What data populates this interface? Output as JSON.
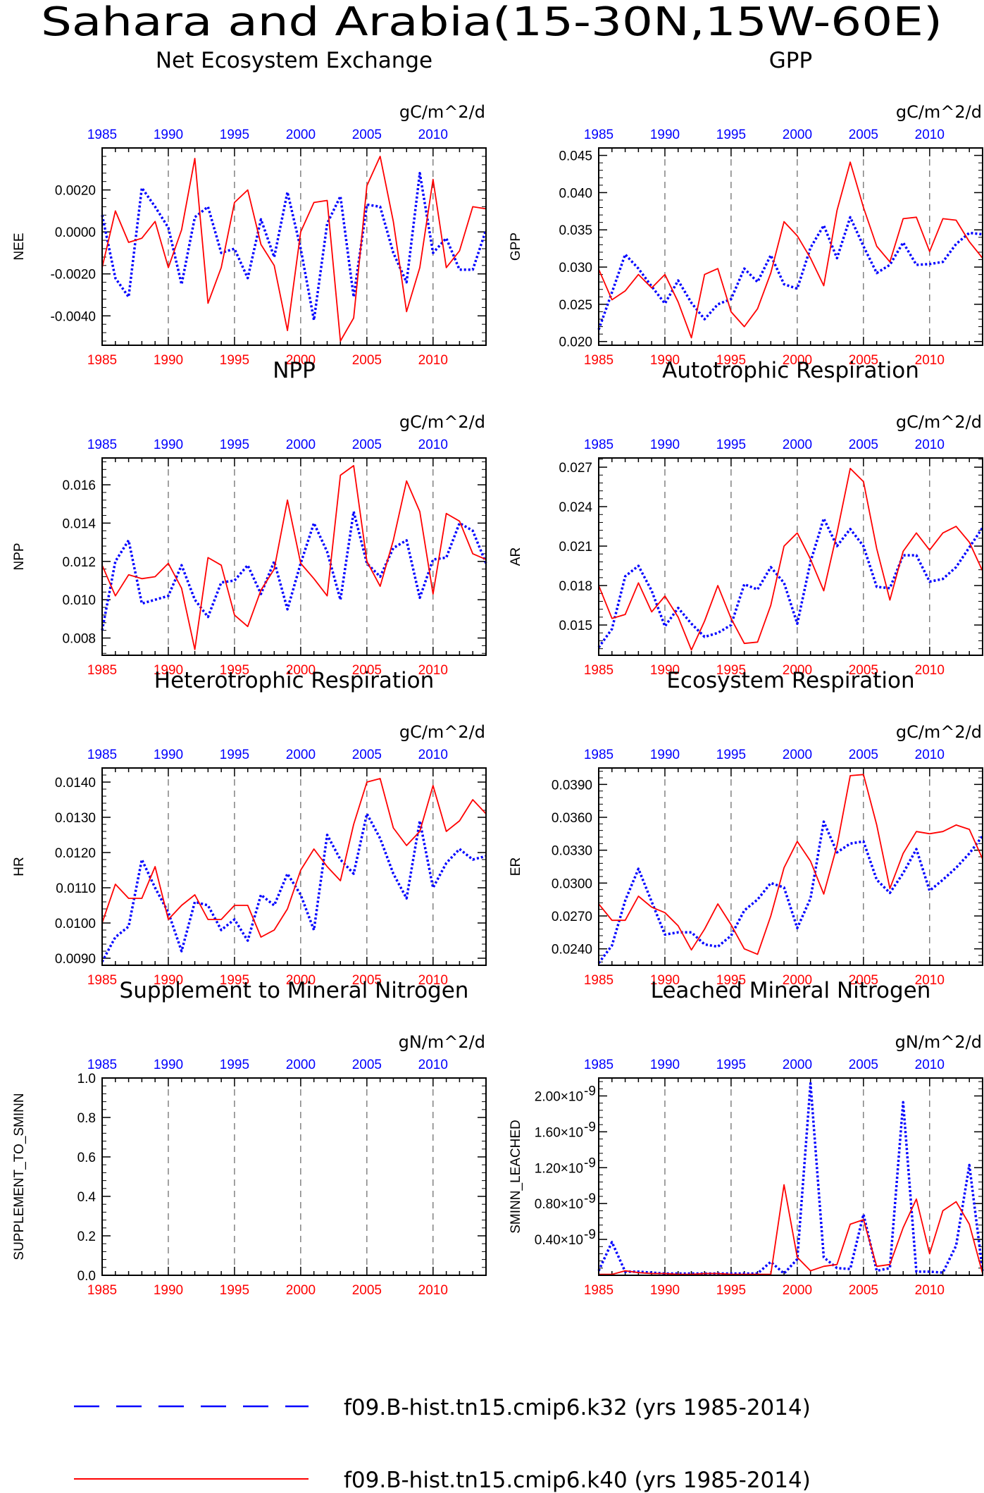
{
  "title": "Sahara and Arabia(15-30N,15W-60E)",
  "legend": [
    {
      "label": "f09.B-hist.tn15.cmip6.k32 (yrs 1985-2014)",
      "color": "#0000ff",
      "style": "dashed"
    },
    {
      "label": "f09.B-hist.tn15.cmip6.k40 (yrs 1985-2014)",
      "color": "#ff0000",
      "style": "solid"
    }
  ],
  "colors": {
    "k32": "#0000ff",
    "k40": "#ff0000",
    "bottom_ticks": "#ff0000",
    "top_ticks": "#0000ff"
  },
  "chart_data": [
    {
      "type": "line",
      "title": "Net Ecosystem Exchange",
      "ylabel": "NEE",
      "units": "gC/m^2/d",
      "xlim": [
        1985,
        2014
      ],
      "ylim": [
        -0.0054,
        0.004
      ],
      "xticks": [
        1985,
        1990,
        1995,
        2000,
        2005,
        2010
      ],
      "yticks": [
        -0.004,
        -0.002,
        0.0,
        0.002
      ],
      "yticklabels": [
        "-0.0040",
        "-0.0020",
        "0.0000",
        "0.0020"
      ],
      "x": [
        1985,
        1986,
        1987,
        1988,
        1989,
        1990,
        1991,
        1992,
        1993,
        1994,
        1995,
        1996,
        1997,
        1998,
        1999,
        2000,
        2001,
        2002,
        2003,
        2004,
        2005,
        2006,
        2007,
        2008,
        2009,
        2010,
        2011,
        2012,
        2013,
        2014
      ],
      "series": [
        {
          "name": "f09.B-hist.tn15.cmip6.k32",
          "color": "#0000ff",
          "dash": true,
          "values": [
            0.0008,
            -0.0022,
            -0.0031,
            0.0021,
            0.0012,
            0.0002,
            -0.0025,
            0.0007,
            0.0012,
            -0.001,
            -0.0008,
            -0.0022,
            0.0006,
            -0.0012,
            0.0019,
            -0.0008,
            -0.0042,
            0.0004,
            0.0017,
            -0.0031,
            0.0013,
            0.0012,
            -0.001,
            -0.0024,
            0.0028,
            -0.001,
            -0.0003,
            -0.0018,
            -0.0018,
            0.0001
          ]
        },
        {
          "name": "f09.B-hist.tn15.cmip6.k40",
          "color": "#ff0000",
          "dash": false,
          "values": [
            -0.0017,
            0.001,
            -0.0005,
            -0.0003,
            0.0005,
            -0.0017,
            0.0001,
            0.0035,
            -0.0034,
            -0.0017,
            0.0014,
            0.002,
            -0.0006,
            -0.0016,
            -0.0047,
            0.0,
            0.0014,
            0.0015,
            -0.0052,
            -0.0041,
            0.0022,
            0.0036,
            0.0005,
            -0.0038,
            -0.0017,
            0.0025,
            -0.0017,
            -0.0009,
            0.0012,
            0.0011
          ]
        }
      ]
    },
    {
      "type": "line",
      "title": "GPP",
      "ylabel": "GPP",
      "units": "gC/m^2/d",
      "xlim": [
        1985,
        2014
      ],
      "ylim": [
        0.0195,
        0.046
      ],
      "xticks": [
        1985,
        1990,
        1995,
        2000,
        2005,
        2010
      ],
      "yticks": [
        0.02,
        0.025,
        0.03,
        0.035,
        0.04,
        0.045
      ],
      "yticklabels": [
        "0.020",
        "0.025",
        "0.030",
        "0.035",
        "0.040",
        "0.045"
      ],
      "x": [
        1985,
        1986,
        1987,
        1988,
        1989,
        1990,
        1991,
        1992,
        1993,
        1994,
        1995,
        1996,
        1997,
        1998,
        1999,
        2000,
        2001,
        2002,
        2003,
        2004,
        2005,
        2006,
        2007,
        2008,
        2009,
        2010,
        2011,
        2012,
        2013,
        2014
      ],
      "series": [
        {
          "name": "f09.B-hist.tn15.cmip6.k32",
          "color": "#0000ff",
          "dash": true,
          "values": [
            0.0216,
            0.0266,
            0.0317,
            0.0298,
            0.0274,
            0.0251,
            0.0282,
            0.0252,
            0.023,
            0.025,
            0.0257,
            0.0298,
            0.028,
            0.0316,
            0.0277,
            0.0271,
            0.0326,
            0.0356,
            0.0312,
            0.0367,
            0.0328,
            0.0292,
            0.0303,
            0.0333,
            0.0303,
            0.0304,
            0.0307,
            0.0331,
            0.0346,
            0.0344
          ]
        },
        {
          "name": "f09.B-hist.tn15.cmip6.k40",
          "color": "#ff0000",
          "dash": false,
          "values": [
            0.0297,
            0.0256,
            0.0268,
            0.029,
            0.0272,
            0.029,
            0.0253,
            0.0205,
            0.029,
            0.0298,
            0.024,
            0.022,
            0.0244,
            0.0292,
            0.0361,
            0.0342,
            0.0312,
            0.0275,
            0.0376,
            0.0441,
            0.038,
            0.0328,
            0.0307,
            0.0365,
            0.0367,
            0.0321,
            0.0365,
            0.0363,
            0.0334,
            0.0312
          ]
        }
      ]
    },
    {
      "type": "line",
      "title": "NPP",
      "ylabel": "NPP",
      "units": "gC/m^2/d",
      "xlim": [
        1985,
        2014
      ],
      "ylim": [
        0.0071,
        0.0174
      ],
      "xticks": [
        1985,
        1990,
        1995,
        2000,
        2005,
        2010
      ],
      "yticks": [
        0.008,
        0.01,
        0.012,
        0.014,
        0.016
      ],
      "yticklabels": [
        "0.008",
        "0.010",
        "0.012",
        "0.014",
        "0.016"
      ],
      "x": [
        1985,
        1986,
        1987,
        1988,
        1989,
        1990,
        1991,
        1992,
        1993,
        1994,
        1995,
        1996,
        1997,
        1998,
        1999,
        2000,
        2001,
        2002,
        2003,
        2004,
        2005,
        2006,
        2007,
        2008,
        2009,
        2010,
        2011,
        2012,
        2013,
        2014
      ],
      "series": [
        {
          "name": "f09.B-hist.tn15.cmip6.k32",
          "color": "#0000ff",
          "dash": true,
          "values": [
            0.0084,
            0.012,
            0.0131,
            0.0098,
            0.01,
            0.0102,
            0.0118,
            0.01,
            0.0091,
            0.0109,
            0.011,
            0.0118,
            0.0103,
            0.012,
            0.0095,
            0.0119,
            0.014,
            0.0125,
            0.01,
            0.0146,
            0.0119,
            0.0112,
            0.0127,
            0.0131,
            0.0101,
            0.0121,
            0.0122,
            0.014,
            0.0136,
            0.0119
          ]
        },
        {
          "name": "f09.B-hist.tn15.cmip6.k40",
          "color": "#ff0000",
          "dash": false,
          "values": [
            0.0118,
            0.0102,
            0.0113,
            0.0111,
            0.0112,
            0.0119,
            0.0106,
            0.0074,
            0.0122,
            0.0118,
            0.0092,
            0.0086,
            0.0105,
            0.0116,
            0.0152,
            0.0119,
            0.0111,
            0.0102,
            0.0165,
            0.017,
            0.012,
            0.0107,
            0.0131,
            0.0162,
            0.0146,
            0.0103,
            0.0145,
            0.0141,
            0.0124,
            0.0121
          ]
        }
      ]
    },
    {
      "type": "line",
      "title": "Autotrophic Respiration",
      "ylabel": "AR",
      "units": "gC/m^2/d",
      "xlim": [
        1985,
        2014
      ],
      "ylim": [
        0.0127,
        0.0277
      ],
      "xticks": [
        1985,
        1990,
        1995,
        2000,
        2005,
        2010
      ],
      "yticks": [
        0.015,
        0.018,
        0.021,
        0.024,
        0.027
      ],
      "yticklabels": [
        "0.015",
        "0.018",
        "0.021",
        "0.024",
        "0.027"
      ],
      "x": [
        1985,
        1986,
        1987,
        1988,
        1989,
        1990,
        1991,
        1992,
        1993,
        1994,
        1995,
        1996,
        1997,
        1998,
        1999,
        2000,
        2001,
        2002,
        2003,
        2004,
        2005,
        2006,
        2007,
        2008,
        2009,
        2010,
        2011,
        2012,
        2013,
        2014
      ],
      "series": [
        {
          "name": "f09.B-hist.tn15.cmip6.k32",
          "color": "#0000ff",
          "dash": true,
          "values": [
            0.0133,
            0.0147,
            0.0187,
            0.0195,
            0.0176,
            0.0149,
            0.0163,
            0.0151,
            0.0141,
            0.0144,
            0.015,
            0.0181,
            0.0177,
            0.0194,
            0.0182,
            0.0151,
            0.0198,
            0.0231,
            0.021,
            0.0223,
            0.021,
            0.0179,
            0.0178,
            0.0203,
            0.0203,
            0.0183,
            0.0185,
            0.0194,
            0.0209,
            0.0224
          ]
        },
        {
          "name": "f09.B-hist.tn15.cmip6.k40",
          "color": "#ff0000",
          "dash": false,
          "values": [
            0.018,
            0.0155,
            0.0158,
            0.0182,
            0.016,
            0.0172,
            0.0156,
            0.0131,
            0.0153,
            0.018,
            0.0155,
            0.0136,
            0.0137,
            0.0165,
            0.021,
            0.022,
            0.02,
            0.0176,
            0.022,
            0.0269,
            0.0259,
            0.0208,
            0.0169,
            0.0206,
            0.022,
            0.0207,
            0.022,
            0.0225,
            0.0213,
            0.0191
          ]
        }
      ]
    },
    {
      "type": "line",
      "title": "Heterotrophic Respiration",
      "ylabel": "HR",
      "units": "gC/m^2/d",
      "xlim": [
        1985,
        2014
      ],
      "ylim": [
        0.0088,
        0.0144
      ],
      "xticks": [
        1985,
        1990,
        1995,
        2000,
        2005,
        2010
      ],
      "yticks": [
        0.009,
        0.01,
        0.011,
        0.012,
        0.013,
        0.014
      ],
      "yticklabels": [
        "0.0090",
        "0.0100",
        "0.0110",
        "0.0120",
        "0.0130",
        "0.0140"
      ],
      "x": [
        1985,
        1986,
        1987,
        1988,
        1989,
        1990,
        1991,
        1992,
        1993,
        1994,
        1995,
        1996,
        1997,
        1998,
        1999,
        2000,
        2001,
        2002,
        2003,
        2004,
        2005,
        2006,
        2007,
        2008,
        2009,
        2010,
        2011,
        2012,
        2013,
        2014
      ],
      "series": [
        {
          "name": "f09.B-hist.tn15.cmip6.k32",
          "color": "#0000ff",
          "dash": true,
          "values": [
            0.0089,
            0.0096,
            0.0099,
            0.0118,
            0.011,
            0.0103,
            0.0092,
            0.0106,
            0.0105,
            0.0098,
            0.0101,
            0.0095,
            0.0108,
            0.0105,
            0.0114,
            0.0108,
            0.0098,
            0.0125,
            0.0118,
            0.0114,
            0.0131,
            0.0124,
            0.0114,
            0.0107,
            0.0129,
            0.011,
            0.0117,
            0.0121,
            0.0118,
            0.0119
          ]
        },
        {
          "name": "f09.B-hist.tn15.cmip6.k40",
          "color": "#ff0000",
          "dash": false,
          "values": [
            0.01,
            0.0111,
            0.0107,
            0.0107,
            0.0116,
            0.0101,
            0.0105,
            0.0108,
            0.0101,
            0.0101,
            0.0105,
            0.0105,
            0.0096,
            0.0098,
            0.0104,
            0.0115,
            0.0121,
            0.0116,
            0.0112,
            0.0128,
            0.014,
            0.0141,
            0.0127,
            0.0122,
            0.0126,
            0.0139,
            0.0126,
            0.0129,
            0.0135,
            0.0131
          ]
        }
      ]
    },
    {
      "type": "line",
      "title": "Ecosystem Respiration",
      "ylabel": "ER",
      "units": "gC/m^2/d",
      "xlim": [
        1985,
        2014
      ],
      "ylim": [
        0.0225,
        0.0405
      ],
      "xticks": [
        1985,
        1990,
        1995,
        2000,
        2005,
        2010
      ],
      "yticks": [
        0.024,
        0.027,
        0.03,
        0.033,
        0.036,
        0.039
      ],
      "yticklabels": [
        "0.0240",
        "0.0270",
        "0.0300",
        "0.0330",
        "0.0360",
        "0.0390"
      ],
      "x": [
        1985,
        1986,
        1987,
        1988,
        1989,
        1990,
        1991,
        1992,
        1993,
        1994,
        1995,
        1996,
        1997,
        1998,
        1999,
        2000,
        2001,
        2002,
        2003,
        2004,
        2005,
        2006,
        2007,
        2008,
        2009,
        2010,
        2011,
        2012,
        2013,
        2014
      ],
      "series": [
        {
          "name": "f09.B-hist.tn15.cmip6.k32",
          "color": "#0000ff",
          "dash": true,
          "values": [
            0.0227,
            0.0243,
            0.0284,
            0.0313,
            0.0283,
            0.0253,
            0.0255,
            0.0255,
            0.0244,
            0.0242,
            0.0252,
            0.0275,
            0.0285,
            0.03,
            0.0296,
            0.0259,
            0.0286,
            0.0356,
            0.0328,
            0.0336,
            0.0338,
            0.0303,
            0.0291,
            0.0309,
            0.0331,
            0.0293,
            0.0303,
            0.0314,
            0.0327,
            0.0343
          ]
        },
        {
          "name": "f09.B-hist.tn15.cmip6.k40",
          "color": "#ff0000",
          "dash": false,
          "values": [
            0.0281,
            0.0266,
            0.0266,
            0.0288,
            0.0278,
            0.0273,
            0.0261,
            0.0239,
            0.0258,
            0.0281,
            0.0262,
            0.024,
            0.0235,
            0.027,
            0.0314,
            0.0338,
            0.032,
            0.029,
            0.0334,
            0.0398,
            0.0399,
            0.0353,
            0.0295,
            0.0327,
            0.0347,
            0.0345,
            0.0347,
            0.0353,
            0.0349,
            0.0322
          ]
        }
      ]
    },
    {
      "type": "line",
      "title": "Supplement to Mineral Nitrogen",
      "ylabel": "SUPPLEMENT_TO_SMINN",
      "units": "gN/m^2/d",
      "xlim": [
        1985,
        2014
      ],
      "ylim": [
        0.0,
        1.0
      ],
      "xticks": [
        1985,
        1990,
        1995,
        2000,
        2005,
        2010
      ],
      "yticks": [
        0.0,
        0.2,
        0.4,
        0.6,
        0.8,
        1.0
      ],
      "yticklabels": [
        "0.0",
        "0.2",
        "0.4",
        "0.6",
        "0.8",
        "1.0"
      ],
      "x": [],
      "series": []
    },
    {
      "type": "line",
      "title": "Leached Mineral Nitrogen",
      "ylabel": "SMINN_LEACHED",
      "units": "gN/m^2/d",
      "xlim": [
        1985,
        2014
      ],
      "ylim": [
        0.0,
        2.2e-09
      ],
      "xticks": [
        1985,
        1990,
        1995,
        2000,
        2005,
        2010
      ],
      "yticks": [
        4e-10,
        8e-10,
        1.2e-09,
        1.6e-09,
        2e-09
      ],
      "yticklabels": [
        "0.40×10",
        "0.80×10",
        "1.20×10",
        "1.60×10",
        "2.00×10"
      ],
      "yticklabel_exponent": "-9",
      "x": [
        1985,
        1986,
        1987,
        1988,
        1989,
        1990,
        1991,
        1992,
        1993,
        1994,
        1995,
        1996,
        1997,
        1998,
        1999,
        2000,
        2001,
        2002,
        2003,
        2004,
        2005,
        2006,
        2007,
        2008,
        2009,
        2010,
        2011,
        2012,
        2013,
        2014
      ],
      "series": [
        {
          "name": "f09.B-hist.tn15.cmip6.k32",
          "color": "#0000ff",
          "dash": true,
          "values": [
            5e-11,
            3.7e-10,
            4e-11,
            4e-11,
            3e-11,
            2e-11,
            2e-11,
            2e-11,
            2e-11,
            2e-11,
            2e-11,
            2e-11,
            2e-11,
            1.5e-10,
            2e-11,
            1.8e-10,
            2.14e-09,
            2e-10,
            8e-11,
            7e-11,
            6.8e-10,
            5e-11,
            8e-11,
            1.93e-09,
            4e-11,
            4e-11,
            3e-11,
            3.3e-10,
            1.23e-09,
            5e-11
          ]
        },
        {
          "name": "f09.B-hist.tn15.cmip6.k40",
          "color": "#ff0000",
          "dash": false,
          "values": [
            1e-11,
            1e-11,
            5e-11,
            3e-11,
            2e-11,
            2e-11,
            1e-11,
            1e-11,
            2e-11,
            2e-11,
            1e-11,
            1e-11,
            1e-11,
            1e-11,
            1.01e-09,
            2e-10,
            5e-11,
            1e-10,
            1.2e-10,
            5.7e-10,
            6.2e-10,
            1e-10,
            1.2e-10,
            5.3e-10,
            8.5e-10,
            2.4e-10,
            7.2e-10,
            8.2e-10,
            5.7e-10,
            2e-11
          ]
        }
      ]
    }
  ]
}
